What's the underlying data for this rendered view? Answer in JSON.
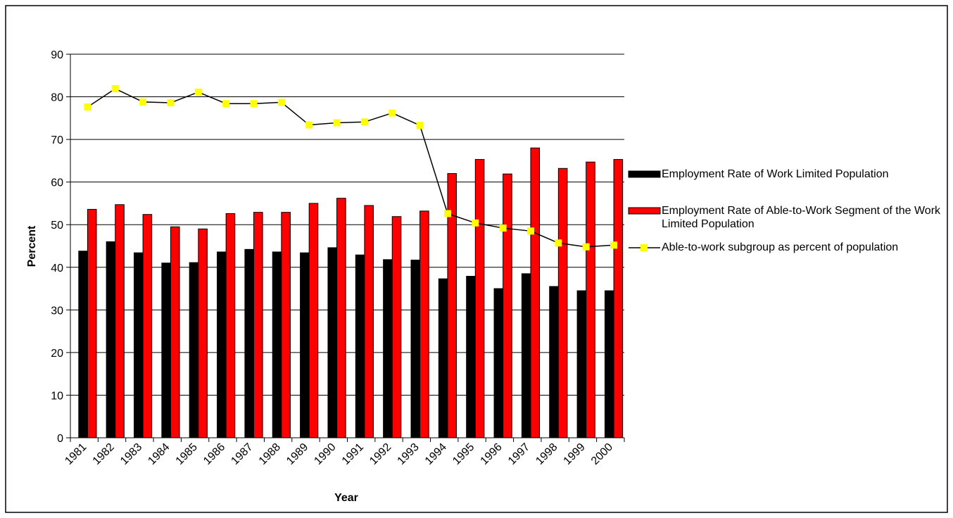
{
  "chart_data": {
    "type": "bar-line",
    "x_label": "Year",
    "y_label": "Percent",
    "categories": [
      "1981",
      "1982",
      "1983",
      "1984",
      "1985",
      "1986",
      "1987",
      "1988",
      "1989",
      "1990",
      "1991",
      "1992",
      "1993",
      "1994",
      "1995",
      "1996",
      "1997",
      "1998",
      "1999",
      "2000"
    ],
    "series": [
      {
        "name": "Employment Rate of Work Limited Population",
        "type": "bar",
        "color": "#000000",
        "values": [
          43.8,
          46,
          43.4,
          41,
          41.1,
          43.6,
          44.2,
          43.6,
          43.4,
          44.6,
          42.9,
          41.8,
          41.7,
          37.3,
          37.9,
          35,
          38.5,
          35.5,
          34.5,
          34.5
        ]
      },
      {
        "name": "Employment Rate of Able-to-Work Segment of the Work Limited Population",
        "type": "bar",
        "color": "#ff0000",
        "values": [
          53.6,
          54.7,
          52.4,
          49.5,
          49,
          52.6,
          52.9,
          52.9,
          55,
          56.2,
          54.5,
          51.9,
          53.2,
          62,
          65.3,
          61.9,
          68,
          63.2,
          64.7,
          65.3
        ]
      },
      {
        "name": "Able-to-work subgroup as percent of population",
        "type": "line",
        "color": "#ffff00",
        "values": [
          77.6,
          81.9,
          78.8,
          78.6,
          81.1,
          78.4,
          78.4,
          78.7,
          73.4,
          73.9,
          74.1,
          76.2,
          73.3,
          52.6,
          50.4,
          49.2,
          48.5,
          45.7,
          44.8,
          45.2
        ]
      }
    ],
    "ylim": [
      0,
      90
    ],
    "yticks": [
      0,
      10,
      20,
      30,
      40,
      50,
      60,
      70,
      80,
      90
    ],
    "grid": true,
    "legend": "right"
  }
}
